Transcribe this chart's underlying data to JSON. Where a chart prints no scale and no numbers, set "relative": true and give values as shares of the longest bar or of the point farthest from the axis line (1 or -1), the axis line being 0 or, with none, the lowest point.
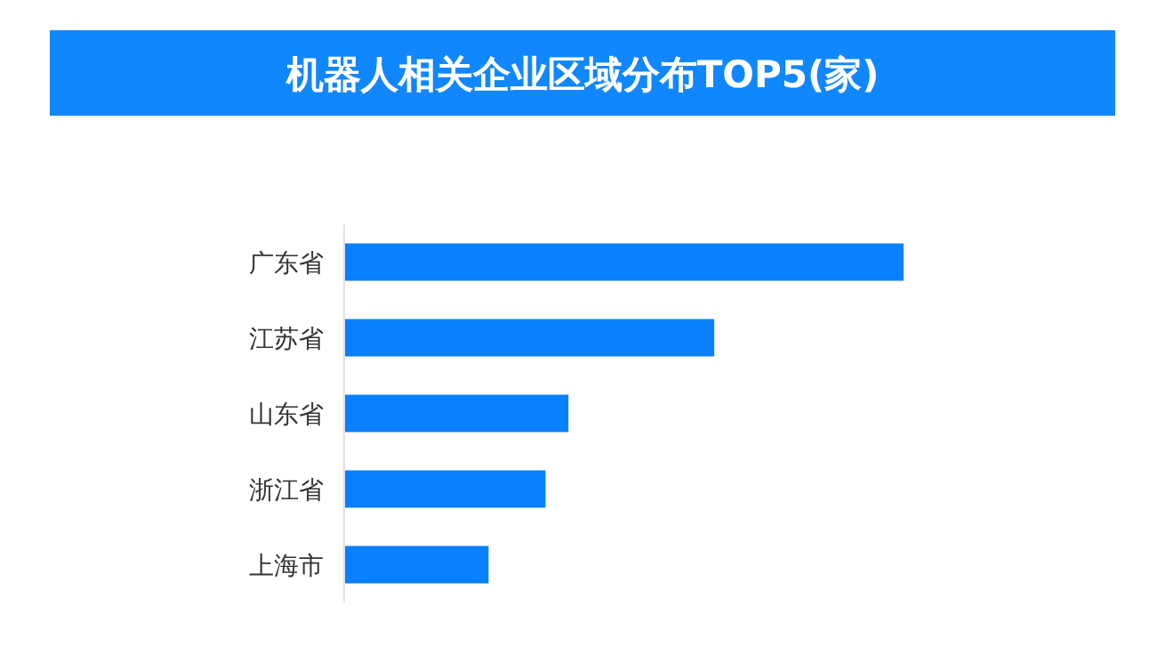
{
  "chart_data": {
    "type": "bar",
    "orientation": "horizontal",
    "relative": true,
    "title": "机器人相关企业区域分布TOP5(家)",
    "categories": [
      "广东省",
      "江苏省",
      "山东省",
      "浙江省",
      "上海市"
    ],
    "values": [
      1,
      0.661,
      0.4,
      0.359,
      0.257
    ],
    "color": "#0a80fe"
  }
}
